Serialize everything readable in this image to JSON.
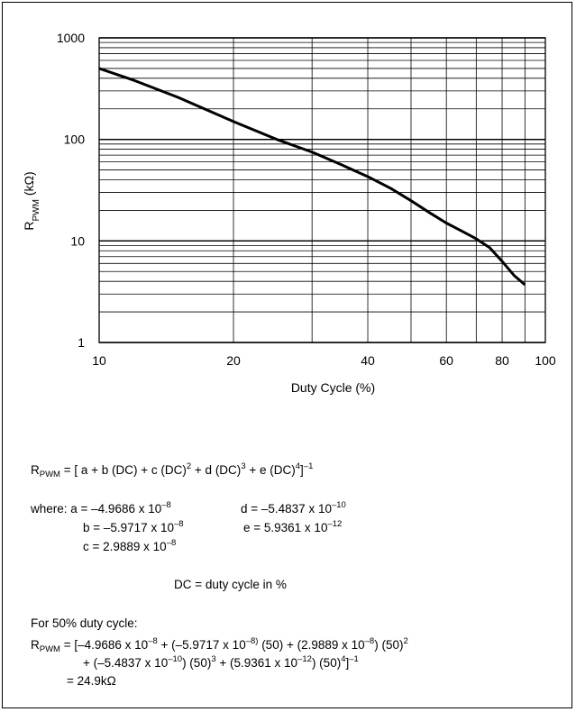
{
  "chart_data": {
    "type": "line",
    "xscale": "log",
    "yscale": "log",
    "xlim": [
      10,
      100
    ],
    "ylim": [
      1,
      1000
    ],
    "grid": true,
    "xlabel": "Duty Cycle (%)",
    "ylabel": {
      "main": "R",
      "sub": "PWM",
      "rest": " (kΩ)"
    },
    "xticks": [
      10,
      20,
      40,
      60,
      80,
      100
    ],
    "xtick_labels": [
      "10",
      "20",
      "40",
      "60",
      "80",
      "100"
    ],
    "yticks": [
      1,
      10,
      100,
      1000
    ],
    "ytick_labels": [
      "1",
      "10",
      "100",
      "1000"
    ],
    "series": [
      {
        "x": [
          10,
          12,
          15,
          20,
          25,
          30,
          35,
          40,
          45,
          50,
          55,
          60,
          65,
          70,
          75,
          80,
          85,
          90
        ],
        "y": [
          500,
          380,
          260,
          150,
          100,
          75,
          56,
          43,
          33,
          24.9,
          19,
          15,
          12.5,
          10.5,
          8.6,
          6.3,
          4.6,
          3.7
        ]
      }
    ]
  },
  "formula": {
    "line1": {
      "lhs": "R",
      "lhs_sub": "PWM",
      "p1": " = [ a +  b (DC) + c (DC)",
      "e1": "2",
      "p2": " + d (DC)",
      "e2": "3",
      "p3": " + e (DC)",
      "e3": "4",
      "p4": "]",
      "e4": "–1"
    },
    "where": {
      "a": {
        "text": "where: a = –4.9686 x 10",
        "exp": "–8"
      },
      "d": {
        "text": "d = –5.4837 x 10",
        "exp": "–10"
      },
      "b": {
        "text": "b = –5.9717 x 10",
        "exp": "–8"
      },
      "e": {
        "text": "e = 5.9361 x 10",
        "exp": "–12"
      },
      "c": {
        "text": "c = 2.9889 x 10",
        "exp": "–8"
      }
    },
    "dc_def": "DC = duty cycle in %",
    "example": {
      "heading": "For 50% duty cycle:",
      "l1_lhs": "R",
      "l1_sub": "PWM",
      "l1_a": " = [–4.9686 x 10",
      "l1_ae": "–8",
      "l1_b": " + (–5.9717 x 10",
      "l1_be": "–8)",
      "l1_c": " (50) + (2.9889 x 10",
      "l1_ce": "–8",
      "l1_d": ") (50)",
      "l1_de": "2",
      "l2_a": "+ (–5.4837 x 10",
      "l2_ae": "–10",
      "l2_b": ") (50)",
      "l2_be": "3",
      "l2_c": " + (5.9361 x 10",
      "l2_ce": "–12",
      "l2_d": ") (50)",
      "l2_de": "4",
      "l2_e": "]",
      "l2_ee": "–1",
      "result": "= 24.9kΩ"
    }
  }
}
